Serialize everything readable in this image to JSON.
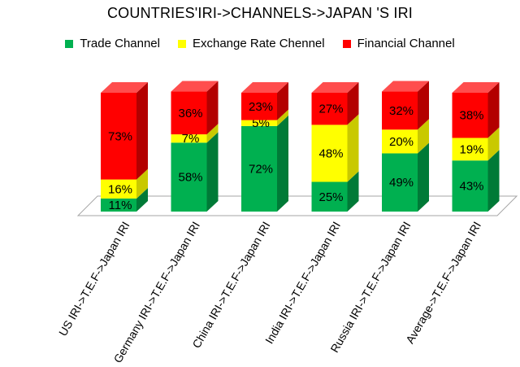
{
  "chart_data": {
    "type": "bar",
    "stacked": true,
    "percent": true,
    "three_d": true,
    "title": "COUNTRIES'IRI->CHANNELS->JAPAN 'S IRI",
    "categories": [
      "US IRI->T.E.F->Japan IRI",
      "Germany IRI->T.E.F->Japan IRI",
      "China IRI->T.E.F->Japan IRI",
      "India IRI->T.E.F->Japan IRI",
      "Russia IRI->T.E.F->Japan IRI",
      "Average->T.E.F->Japan IRI"
    ],
    "series": [
      {
        "name": "Trade Channel",
        "color": "#00b050",
        "values": [
          11,
          58,
          72,
          25,
          49,
          43
        ],
        "labels": [
          "11%",
          "58%",
          "72%",
          "25%",
          "49%",
          "43%"
        ]
      },
      {
        "name": "Exchange Rate Chennel",
        "color": "#ffff00",
        "values": [
          16,
          7,
          5,
          48,
          20,
          19
        ],
        "labels": [
          "16%",
          "7%",
          "5%",
          "48%",
          "20%",
          "19%"
        ]
      },
      {
        "name": "Financial Channel",
        "color": "#ff0000",
        "values": [
          73,
          36,
          23,
          27,
          32,
          38
        ],
        "labels": [
          "73%",
          "36%",
          "23%",
          "27%",
          "32%",
          "38%"
        ]
      }
    ],
    "ylim": [
      0,
      100
    ],
    "legend_position": "top",
    "grid": false
  }
}
